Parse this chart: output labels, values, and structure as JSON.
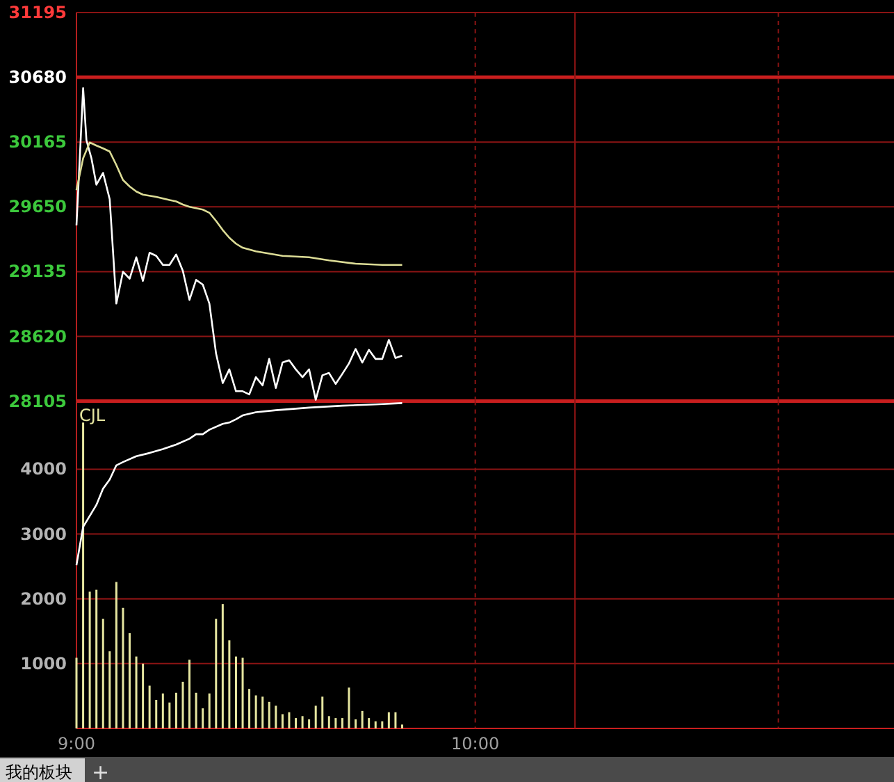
{
  "chart_data": [
    {
      "type": "line",
      "xlim": [
        9,
        11.05
      ],
      "ylim": [
        28105,
        31195
      ],
      "yticks": [
        28105,
        28620,
        29135,
        29650,
        30165,
        30680,
        31195
      ],
      "grid": "y",
      "tick_labels": "y",
      "ref_lines": [
        {
          "axis": "y",
          "value": 30680,
          "color": "#c81e1e"
        },
        {
          "axis": "x",
          "value": 10,
          "line_style": "dashed",
          "color": "#8c1414"
        },
        {
          "axis": "x",
          "value": 10.25,
          "line_style": "solid",
          "color": "#8c1414"
        },
        {
          "axis": "x",
          "value": 10.76,
          "line_style": "dashed",
          "color": "#8c1414"
        }
      ],
      "series": [
        {
          "color": "#ffffff",
          "x": [
            9,
            9.0083,
            9.0167,
            9.025,
            9.0375,
            9.05,
            9.0667,
            9.0833,
            9.1,
            9.1167,
            9.1333,
            9.15,
            9.1667,
            9.1833,
            9.2,
            9.2167,
            9.2333,
            9.25,
            9.2667,
            9.2833,
            9.3,
            9.3167,
            9.3333,
            9.35,
            9.3667,
            9.3833,
            9.4,
            9.4167,
            9.4333,
            9.45,
            9.4667,
            9.4833,
            9.5,
            9.5167,
            9.5333,
            9.55,
            9.5667,
            9.5833,
            9.6,
            9.6167,
            9.6333,
            9.65,
            9.6667,
            9.6833,
            9.7,
            9.7167,
            9.7333,
            9.75,
            9.7667,
            9.7833,
            9.8,
            9.8167
          ],
          "values": [
            29502,
            30036,
            30595,
            30180,
            30036,
            29826,
            29920,
            29711,
            28881,
            29134,
            29079,
            29249,
            29061,
            29285,
            29260,
            29188,
            29188,
            29271,
            29141,
            28910,
            29069,
            29032,
            28881,
            28484,
            28249,
            28358,
            28184,
            28184,
            28159,
            28296,
            28231,
            28441,
            28210,
            28412,
            28430,
            28358,
            28296,
            28358,
            28116,
            28311,
            28329,
            28242,
            28322,
            28405,
            28520,
            28412,
            28513,
            28441,
            28441,
            28592,
            28448,
            28466
          ]
        },
        {
          "color": "#dcdc96",
          "x": [
            9,
            9.0167,
            9.0333,
            9.05,
            9.0667,
            9.0833,
            9.1,
            9.1167,
            9.1333,
            9.15,
            9.1667,
            9.2,
            9.2333,
            9.25,
            9.2667,
            9.2833,
            9.3167,
            9.3333,
            9.35,
            9.3667,
            9.3833,
            9.4,
            9.4167,
            9.45,
            9.4833,
            9.5167,
            9.5833,
            9.6333,
            9.7,
            9.7667,
            9.8167
          ],
          "values": [
            29783,
            30036,
            30162,
            30137,
            30115,
            30090,
            29982,
            29863,
            29812,
            29772,
            29747,
            29729,
            29704,
            29693,
            29668,
            29650,
            29628,
            29603,
            29538,
            29466,
            29404,
            29357,
            29325,
            29296,
            29278,
            29260,
            29249,
            29224,
            29198,
            29188,
            29188
          ]
        }
      ]
    },
    {
      "type": "bar",
      "xlim": [
        9,
        11.05
      ],
      "ylim": [
        0,
        5050
      ],
      "yticks": [
        1000,
        2000,
        3000,
        4000
      ],
      "xticks": [
        {
          "value": 9,
          "label": "9:00"
        },
        {
          "value": 10,
          "label": "10:00"
        }
      ],
      "grid": "y",
      "ref_lines": [
        {
          "axis": "x",
          "value": 10,
          "line_style": "dashed",
          "color": "#8c1414"
        },
        {
          "axis": "x",
          "value": 10.25,
          "line_style": "solid",
          "color": "#8c1414"
        },
        {
          "axis": "x",
          "value": 10.76,
          "line_style": "dashed",
          "color": "#8c1414"
        }
      ],
      "series": [
        {
          "name": "CJL",
          "color": "#e6e6a0",
          "x": [
            9,
            9.0167,
            9.0333,
            9.05,
            9.0667,
            9.0833,
            9.1,
            9.1167,
            9.1333,
            9.15,
            9.1667,
            9.1833,
            9.2,
            9.2167,
            9.2333,
            9.25,
            9.2667,
            9.2833,
            9.3,
            9.3167,
            9.3333,
            9.35,
            9.3667,
            9.3833,
            9.4,
            9.4167,
            9.4333,
            9.45,
            9.4667,
            9.4833,
            9.5,
            9.5167,
            9.5333,
            9.55,
            9.5667,
            9.5833,
            9.6,
            9.6167,
            9.6333,
            9.65,
            9.6667,
            9.6833,
            9.7,
            9.7167,
            9.7333,
            9.75,
            9.7667,
            9.7833,
            9.8,
            9.8167
          ],
          "values": [
            1090,
            4720,
            2110,
            2140,
            1690,
            1190,
            2260,
            1860,
            1470,
            1110,
            1000,
            660,
            440,
            540,
            400,
            550,
            720,
            1060,
            550,
            310,
            540,
            1690,
            1920,
            1360,
            1110,
            1090,
            610,
            510,
            490,
            410,
            350,
            220,
            250,
            160,
            190,
            140,
            350,
            490,
            190,
            160,
            160,
            630,
            140,
            270,
            160,
            110,
            110,
            250,
            250,
            60
          ]
        },
        {
          "type": "line",
          "color": "#ffffff",
          "x": [
            9,
            9.0167,
            9.05,
            9.0667,
            9.0833,
            9.1,
            9.1167,
            9.15,
            9.1833,
            9.2167,
            9.25,
            9.2833,
            9.3,
            9.3167,
            9.3333,
            9.3667,
            9.3833,
            9.4,
            9.4167,
            9.45,
            9.5,
            9.5833,
            9.6667,
            9.75,
            9.8167
          ],
          "values": [
            2520,
            3110,
            3450,
            3700,
            3840,
            4060,
            4110,
            4200,
            4250,
            4310,
            4380,
            4470,
            4540,
            4540,
            4610,
            4700,
            4720,
            4770,
            4830,
            4880,
            4910,
            4950,
            4980,
            5000,
            5020
          ]
        }
      ],
      "annotations": [
        "我的板块",
        "+"
      ]
    }
  ]
}
